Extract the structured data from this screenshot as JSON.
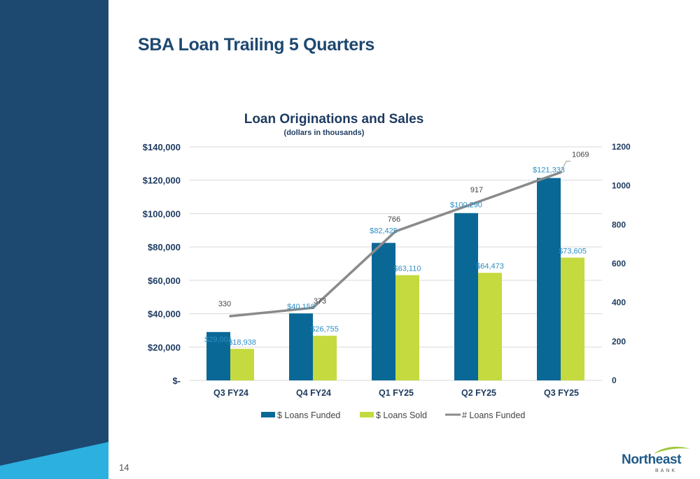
{
  "slide": {
    "title": "SBA Loan Trailing 5 Quarters",
    "page_number": "14",
    "logo": {
      "name": "Northeast",
      "sub": "BANK"
    }
  },
  "colors": {
    "sidebar": "#1d4870",
    "sidebar_accent": "#2bb0e0",
    "funded": "#0a6896",
    "sold": "#c5da3f",
    "count_line": "#8a8a8a",
    "grid": "#d9d9d9"
  },
  "chart_data": {
    "type": "bar",
    "title": "Loan Originations and Sales",
    "subtitle": "(dollars in thousands)",
    "categories": [
      "Q3 FY24",
      "Q4 FY24",
      "Q1 FY25",
      "Q2 FY25",
      "Q3 FY25"
    ],
    "series": [
      {
        "name": "$ Loans Funded",
        "type": "bar",
        "axis": "left",
        "values": [
          29001,
          40158,
          82425,
          100290,
          121333
        ],
        "labels": [
          "$29,001",
          "$40,158",
          "$82,425",
          "$100,290",
          "$121,333"
        ]
      },
      {
        "name": "$ Loans Sold",
        "type": "bar",
        "axis": "left",
        "values": [
          18938,
          26755,
          63110,
          64473,
          73605
        ],
        "labels": [
          "$18,938",
          "$26,755",
          "$63,110",
          "$64,473",
          "$73,605"
        ]
      },
      {
        "name": "# Loans Funded",
        "type": "line",
        "axis": "right",
        "values": [
          330,
          373,
          766,
          917,
          1069
        ],
        "labels": [
          "330",
          "373",
          "766",
          "917",
          "1069"
        ]
      }
    ],
    "y_left": {
      "range": [
        0,
        140000
      ],
      "ticks": [
        0,
        20000,
        40000,
        60000,
        80000,
        100000,
        120000,
        140000
      ],
      "tick_labels": [
        "$-",
        "$20,000",
        "$40,000",
        "$60,000",
        "$80,000",
        "$100,000",
        "$120,000",
        "$140,000"
      ]
    },
    "y_right": {
      "range": [
        0,
        1200
      ],
      "ticks": [
        0,
        200,
        400,
        600,
        800,
        1000,
        1200
      ],
      "tick_labels": [
        "0",
        "200",
        "400",
        "600",
        "800",
        "1000",
        "1200"
      ]
    },
    "grid": true,
    "legend": "bottom"
  }
}
